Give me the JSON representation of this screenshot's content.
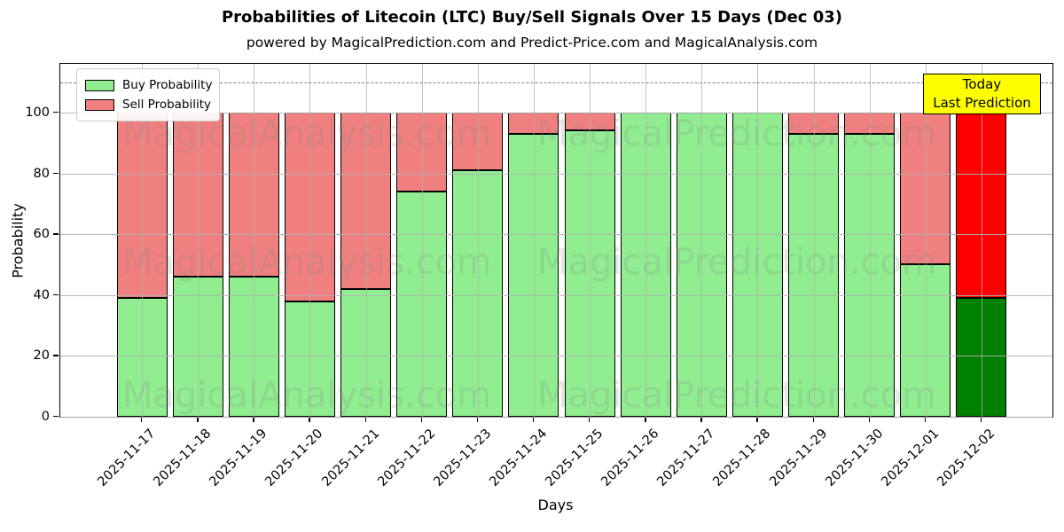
{
  "title": "Probabilities of Litecoin (LTC) Buy/Sell Signals Over 15 Days (Dec 03)",
  "subtitle": "powered by MagicalPrediction.com and Predict-Price.com and MagicalAnalysis.com",
  "legend": {
    "buy_label": "Buy Probability",
    "sell_label": "Sell Probability"
  },
  "annotation": {
    "line1": "Today",
    "line2": "Last Prediction"
  },
  "watermarks": [
    "MagicalAnalysis.com",
    "MagicalPrediction.com"
  ],
  "axes": {
    "xlabel": "Days",
    "ylabel": "Probability",
    "yticks": [
      0,
      20,
      40,
      60,
      80,
      100
    ],
    "dashed_line_y": 110
  },
  "colors": {
    "buy": "#90ee90",
    "sell": "#f08080",
    "today_buy": "#008000",
    "today_sell": "#ff0000",
    "bar_edge": "#000000",
    "grid": "#b0b0b0",
    "dashed_line": "#7f7f7f",
    "annotation_bg": "#ffff00",
    "watermark": "#808080"
  },
  "chart_data": {
    "type": "bar",
    "stacked": true,
    "title": "Probabilities of Litecoin (LTC) Buy/Sell Signals Over 15 Days (Dec 03)",
    "xlabel": "Days",
    "ylabel": "Probability",
    "ylim": [
      0,
      116
    ],
    "grid": true,
    "legend_position": "upper left",
    "categories": [
      "2025-11-17",
      "2025-11-18",
      "2025-11-19",
      "2025-11-20",
      "2025-11-21",
      "2025-11-22",
      "2025-11-23",
      "2025-11-24",
      "2025-11-25",
      "2025-11-26",
      "2025-11-27",
      "2025-11-28",
      "2025-11-29",
      "2025-11-30",
      "2025-12-01",
      "2025-12-02"
    ],
    "series": [
      {
        "name": "Buy Probability",
        "color": "#90ee90",
        "values": [
          39,
          46,
          46,
          38,
          42,
          74,
          81,
          93,
          94,
          100,
          100,
          100,
          93,
          93,
          50,
          39
        ]
      },
      {
        "name": "Sell Probability",
        "color": "#f08080",
        "values": [
          61,
          54,
          54,
          62,
          58,
          26,
          19,
          7,
          6,
          0,
          0,
          0,
          7,
          7,
          50,
          61
        ]
      }
    ],
    "today_bar": {
      "category": "2025-12-02",
      "buy_color": "#008000",
      "sell_color": "#ff0000"
    },
    "dashed_reference_line": 110
  }
}
